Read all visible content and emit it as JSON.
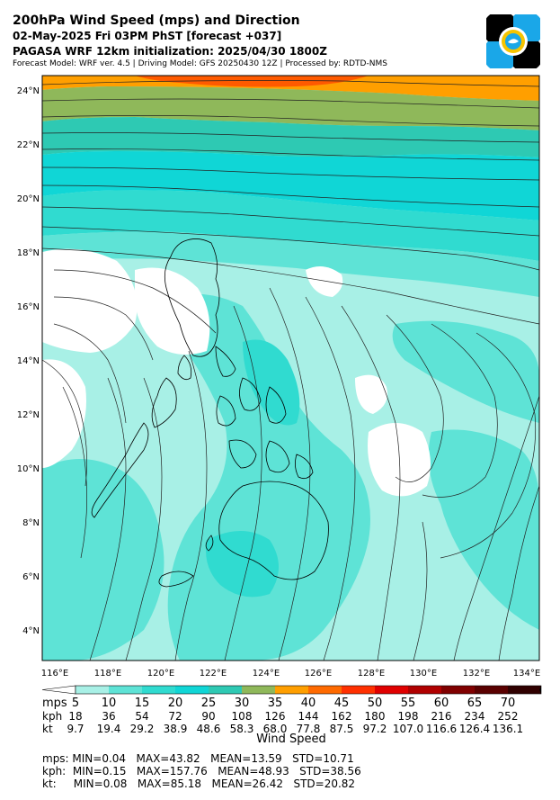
{
  "header": {
    "title": "200hPa Wind Speed (mps) and Direction",
    "forecast": "02-May-2025 Fri 03PM PhST [forecast +037]",
    "init": "PAGASA WRF 12km initialization: 2025/04/30 1800Z",
    "info": "Forecast Model: WRF ver. 4.5 | Driving Model: GFS 20250430 12Z | Processed by: RDTD-NMS"
  },
  "map": {
    "lon_labels": [
      "116°E",
      "118°E",
      "120°E",
      "122°E",
      "124°E",
      "126°E",
      "128°E",
      "130°E",
      "132°E",
      "134°E"
    ],
    "lat_labels": [
      "24°N",
      "22°N",
      "20°N",
      "18°N",
      "16°N",
      "14°N",
      "12°N",
      "10°N",
      "8°N",
      "6°N",
      "4°N"
    ],
    "colors": {
      "c1": "#a8f0e6",
      "c2": "#5ee3d6",
      "c3": "#30dbd0",
      "c4": "#10d6d6",
      "c5": "#2ec9b3",
      "c6": "#8fb85a",
      "c7": "#ff9f00",
      "c8": "#ff5a00"
    }
  },
  "legend": {
    "row_labels": [
      "mps",
      "kph",
      "kt"
    ],
    "mps": [
      "5",
      "10",
      "15",
      "20",
      "25",
      "30",
      "35",
      "40",
      "45",
      "50",
      "55",
      "60",
      "65",
      "70"
    ],
    "kph": [
      "18",
      "36",
      "54",
      "72",
      "90",
      "108",
      "126",
      "144",
      "162",
      "180",
      "198",
      "216",
      "234",
      "252"
    ],
    "kt": [
      "9.7",
      "19.4",
      "29.2",
      "38.9",
      "48.6",
      "58.3",
      "68.0",
      "77.8",
      "87.5",
      "97.2",
      "107.0",
      "116.6",
      "126.4",
      "136.1"
    ],
    "caption": "Wind Speed",
    "colors": [
      "#ffffff",
      "#a8f0e6",
      "#5ee3d6",
      "#30dbd0",
      "#10d6d6",
      "#2ec9b3",
      "#8fb85a",
      "#ff9f00",
      "#ff6a00",
      "#ff3000",
      "#e00000",
      "#b00000",
      "#800000",
      "#5a0000",
      "#300000",
      "#000000"
    ]
  },
  "stats": {
    "mps": "mps: MIN=0.04   MAX=43.82   MEAN=13.59   STD=10.71",
    "kph": "kph:  MIN=0.15   MAX=157.76   MEAN=48.93   STD=38.56",
    "kt": "kt:     MIN=0.08   MAX=85.18   MEAN=26.42   STD=20.82"
  }
}
